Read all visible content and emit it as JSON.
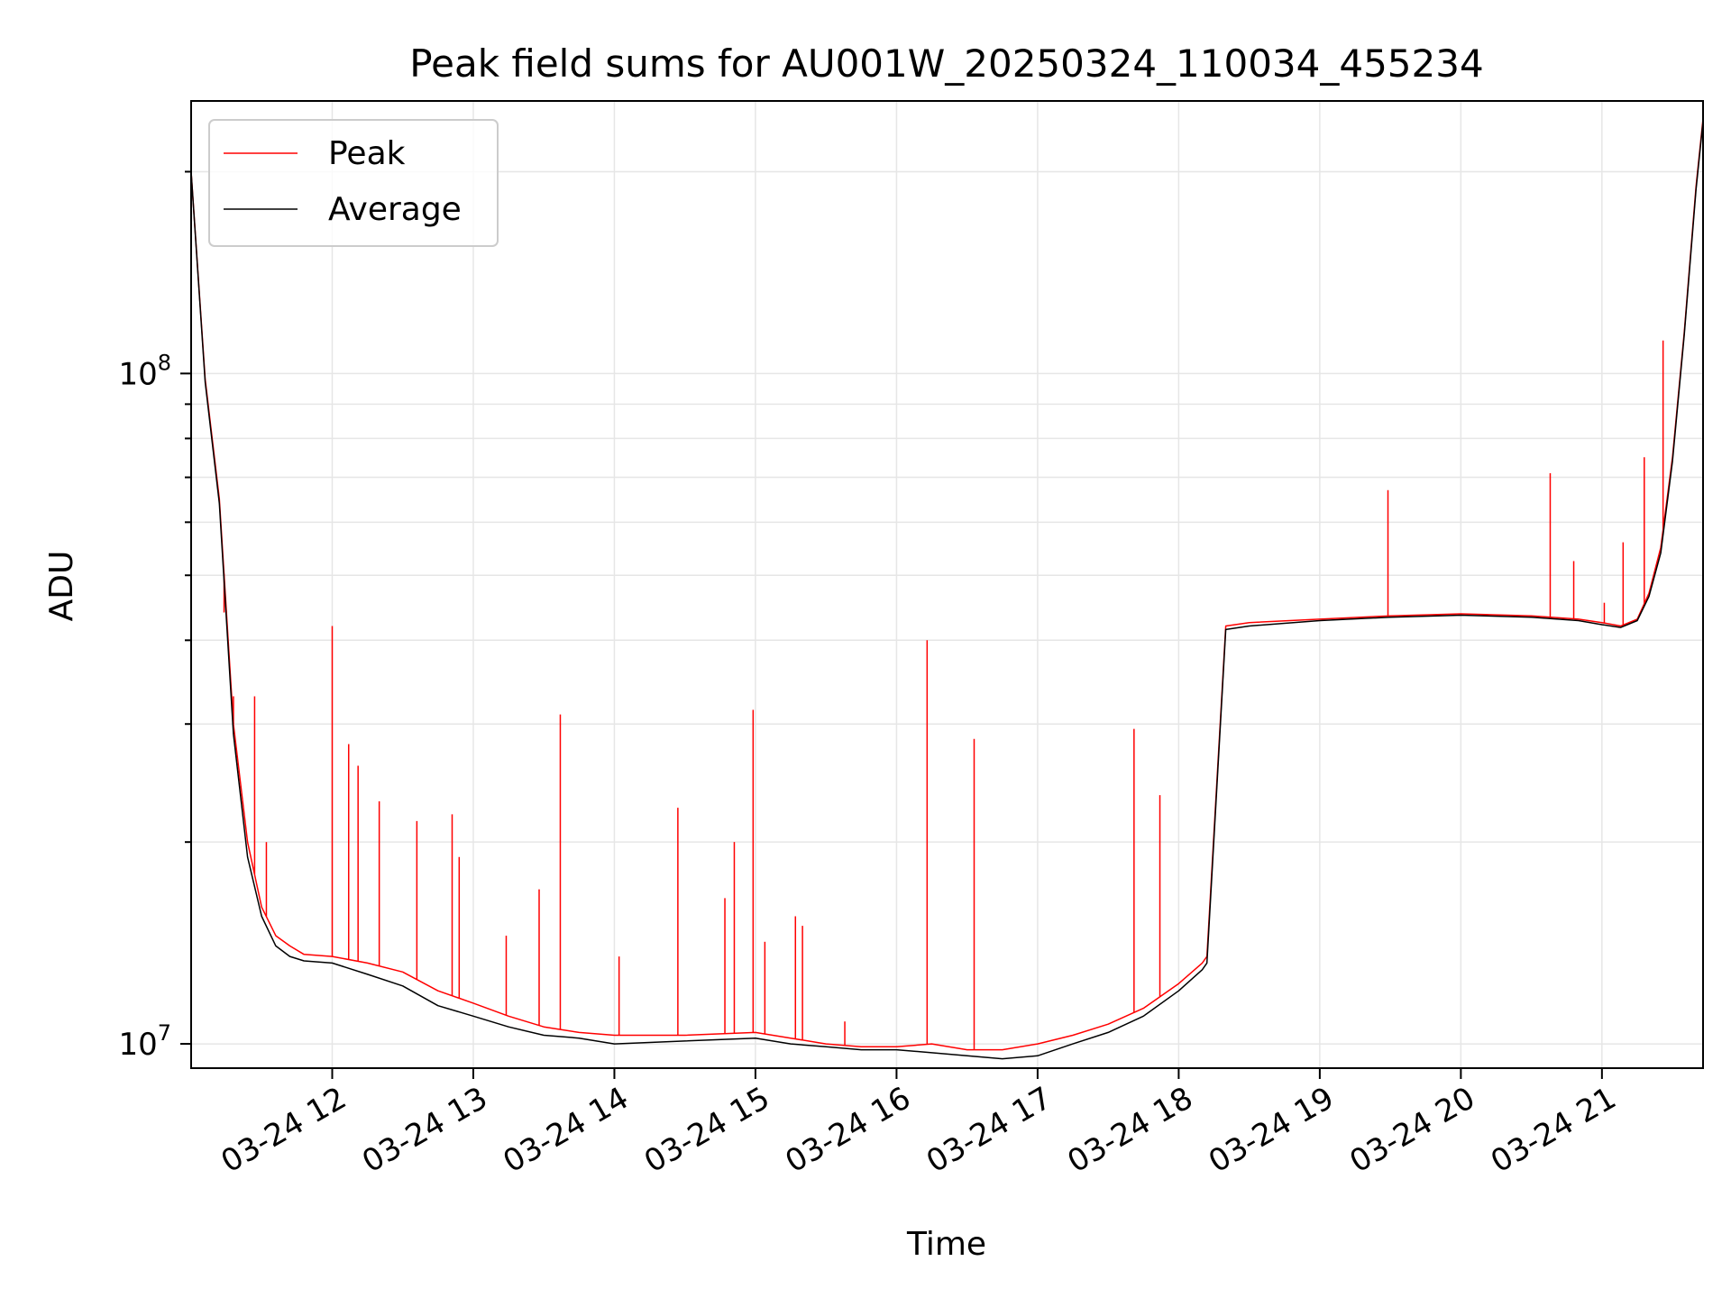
{
  "chart_data": {
    "type": "line",
    "title": "Peak field sums for AU001W_20250324_110034_455234",
    "xlabel": "Time",
    "ylabel": "ADU",
    "y_scale": "log",
    "ylim": [
      9200000,
      255000000
    ],
    "xlim": [
      "2025-03-24 11:00",
      "2025-03-24 21:43"
    ],
    "x_ticks": [
      "2025-03-24 12:00",
      "2025-03-24 13:00",
      "2025-03-24 14:00",
      "2025-03-24 15:00",
      "2025-03-24 16:00",
      "2025-03-24 17:00",
      "2025-03-24 18:00",
      "2025-03-24 19:00",
      "2025-03-24 20:00",
      "2025-03-24 21:00"
    ],
    "x_tick_labels": [
      "03-24 12",
      "03-24 13",
      "03-24 14",
      "03-24 15",
      "03-24 16",
      "03-24 17",
      "03-24 18",
      "03-24 19",
      "03-24 20",
      "03-24 21"
    ],
    "y_major_ticks": [
      10000000,
      100000000
    ],
    "y_tick_labels": [
      {
        "base": "10",
        "exp": "7"
      },
      {
        "base": "10",
        "exp": "8"
      }
    ],
    "grid": true,
    "legend_position": "upper-left",
    "series": [
      {
        "name": "Peak",
        "color": "#ff0000",
        "x": [
          "2025-03-24 11:00",
          "2025-03-24 11:06",
          "2025-03-24 11:12",
          "2025-03-24 11:18",
          "2025-03-24 11:24",
          "2025-03-24 11:30",
          "2025-03-24 11:36",
          "2025-03-24 11:42",
          "2025-03-24 11:48",
          "2025-03-24 12:00",
          "2025-03-24 12:15",
          "2025-03-24 12:30",
          "2025-03-24 12:45",
          "2025-03-24 13:00",
          "2025-03-24 13:15",
          "2025-03-24 13:30",
          "2025-03-24 13:45",
          "2025-03-24 14:00",
          "2025-03-24 14:30",
          "2025-03-24 15:00",
          "2025-03-24 15:15",
          "2025-03-24 15:30",
          "2025-03-24 15:45",
          "2025-03-24 16:00",
          "2025-03-24 16:15",
          "2025-03-24 16:30",
          "2025-03-24 16:45",
          "2025-03-24 17:00",
          "2025-03-24 17:15",
          "2025-03-24 17:30",
          "2025-03-24 17:45",
          "2025-03-24 18:00",
          "2025-03-24 18:10",
          "2025-03-24 18:12",
          "2025-03-24 18:20",
          "2025-03-24 18:30",
          "2025-03-24 19:00",
          "2025-03-24 19:30",
          "2025-03-24 20:00",
          "2025-03-24 20:30",
          "2025-03-24 20:50",
          "2025-03-24 21:00",
          "2025-03-24 21:08",
          "2025-03-24 21:15",
          "2025-03-24 21:20",
          "2025-03-24 21:25",
          "2025-03-24 21:30",
          "2025-03-24 21:35",
          "2025-03-24 21:40",
          "2025-03-24 21:43"
        ],
        "values": [
          200000000,
          98000000,
          65000000,
          30000000,
          20000000,
          16000000,
          14500000,
          14000000,
          13600000,
          13500000,
          13200000,
          12800000,
          12000000,
          11500000,
          11000000,
          10600000,
          10400000,
          10300000,
          10300000,
          10400000,
          10200000,
          10000000,
          9900000,
          9900000,
          10000000,
          9800000,
          9800000,
          10000000,
          10300000,
          10700000,
          11300000,
          12300000,
          13200000,
          13500000,
          42000000,
          42500000,
          43000000,
          43500000,
          43800000,
          43500000,
          43000000,
          42500000,
          42000000,
          43000000,
          47000000,
          55000000,
          75000000,
          115000000,
          190000000,
          240000000
        ],
        "spikes": [
          {
            "x": "2025-03-24 11:14",
            "y": 44000000
          },
          {
            "x": "2025-03-24 11:18",
            "y": 33000000
          },
          {
            "x": "2025-03-24 11:27",
            "y": 33000000
          },
          {
            "x": "2025-03-24 11:32",
            "y": 20000000
          },
          {
            "x": "2025-03-24 12:00",
            "y": 42000000
          },
          {
            "x": "2025-03-24 12:07",
            "y": 28000000
          },
          {
            "x": "2025-03-24 12:11",
            "y": 26000000
          },
          {
            "x": "2025-03-24 12:20",
            "y": 23000000
          },
          {
            "x": "2025-03-24 12:36",
            "y": 21500000
          },
          {
            "x": "2025-03-24 12:51",
            "y": 22000000
          },
          {
            "x": "2025-03-24 12:54",
            "y": 19000000
          },
          {
            "x": "2025-03-24 13:14",
            "y": 14500000
          },
          {
            "x": "2025-03-24 13:28",
            "y": 17000000
          },
          {
            "x": "2025-03-24 13:37",
            "y": 31000000
          },
          {
            "x": "2025-03-24 14:02",
            "y": 13500000
          },
          {
            "x": "2025-03-24 14:27",
            "y": 22500000
          },
          {
            "x": "2025-03-24 14:47",
            "y": 16500000
          },
          {
            "x": "2025-03-24 14:51",
            "y": 20000000
          },
          {
            "x": "2025-03-24 14:59",
            "y": 31500000
          },
          {
            "x": "2025-03-24 15:04",
            "y": 14200000
          },
          {
            "x": "2025-03-24 15:17",
            "y": 15500000
          },
          {
            "x": "2025-03-24 15:20",
            "y": 15000000
          },
          {
            "x": "2025-03-24 15:38",
            "y": 10800000
          },
          {
            "x": "2025-03-24 16:13",
            "y": 40000000
          },
          {
            "x": "2025-03-24 16:33",
            "y": 28500000
          },
          {
            "x": "2025-03-24 17:41",
            "y": 29500000
          },
          {
            "x": "2025-03-24 17:52",
            "y": 23500000
          },
          {
            "x": "2025-03-24 19:29",
            "y": 67000000
          },
          {
            "x": "2025-03-24 20:38",
            "y": 71000000
          },
          {
            "x": "2025-03-24 20:48",
            "y": 52500000
          },
          {
            "x": "2025-03-24 21:01",
            "y": 45500000
          },
          {
            "x": "2025-03-24 21:09",
            "y": 56000000
          },
          {
            "x": "2025-03-24 21:18",
            "y": 75000000
          },
          {
            "x": "2025-03-24 21:26",
            "y": 112000000
          }
        ]
      },
      {
        "name": "Average",
        "color": "#000000",
        "x": [
          "2025-03-24 11:00",
          "2025-03-24 11:06",
          "2025-03-24 11:12",
          "2025-03-24 11:18",
          "2025-03-24 11:24",
          "2025-03-24 11:30",
          "2025-03-24 11:36",
          "2025-03-24 11:42",
          "2025-03-24 11:48",
          "2025-03-24 12:00",
          "2025-03-24 12:15",
          "2025-03-24 12:30",
          "2025-03-24 12:45",
          "2025-03-24 13:00",
          "2025-03-24 13:15",
          "2025-03-24 13:30",
          "2025-03-24 13:45",
          "2025-03-24 14:00",
          "2025-03-24 14:30",
          "2025-03-24 15:00",
          "2025-03-24 15:15",
          "2025-03-24 15:30",
          "2025-03-24 15:45",
          "2025-03-24 16:00",
          "2025-03-24 16:15",
          "2025-03-24 16:30",
          "2025-03-24 16:45",
          "2025-03-24 17:00",
          "2025-03-24 17:15",
          "2025-03-24 17:30",
          "2025-03-24 17:45",
          "2025-03-24 18:00",
          "2025-03-24 18:10",
          "2025-03-24 18:12",
          "2025-03-24 18:20",
          "2025-03-24 18:30",
          "2025-03-24 19:00",
          "2025-03-24 19:30",
          "2025-03-24 20:00",
          "2025-03-24 20:30",
          "2025-03-24 20:50",
          "2025-03-24 21:00",
          "2025-03-24 21:08",
          "2025-03-24 21:15",
          "2025-03-24 21:20",
          "2025-03-24 21:25",
          "2025-03-24 21:30",
          "2025-03-24 21:35",
          "2025-03-24 21:40",
          "2025-03-24 21:43"
        ],
        "values": [
          200000000,
          97000000,
          64000000,
          29000000,
          19000000,
          15500000,
          14000000,
          13500000,
          13300000,
          13200000,
          12700000,
          12200000,
          11400000,
          11000000,
          10600000,
          10300000,
          10200000,
          10000000,
          10100000,
          10200000,
          10000000,
          9900000,
          9800000,
          9800000,
          9700000,
          9600000,
          9500000,
          9600000,
          10000000,
          10400000,
          11000000,
          12000000,
          12900000,
          13200000,
          41500000,
          42000000,
          42800000,
          43300000,
          43600000,
          43300000,
          42800000,
          42200000,
          41800000,
          42800000,
          46500000,
          54000000,
          74000000,
          114000000,
          188000000,
          238000000
        ]
      }
    ]
  }
}
